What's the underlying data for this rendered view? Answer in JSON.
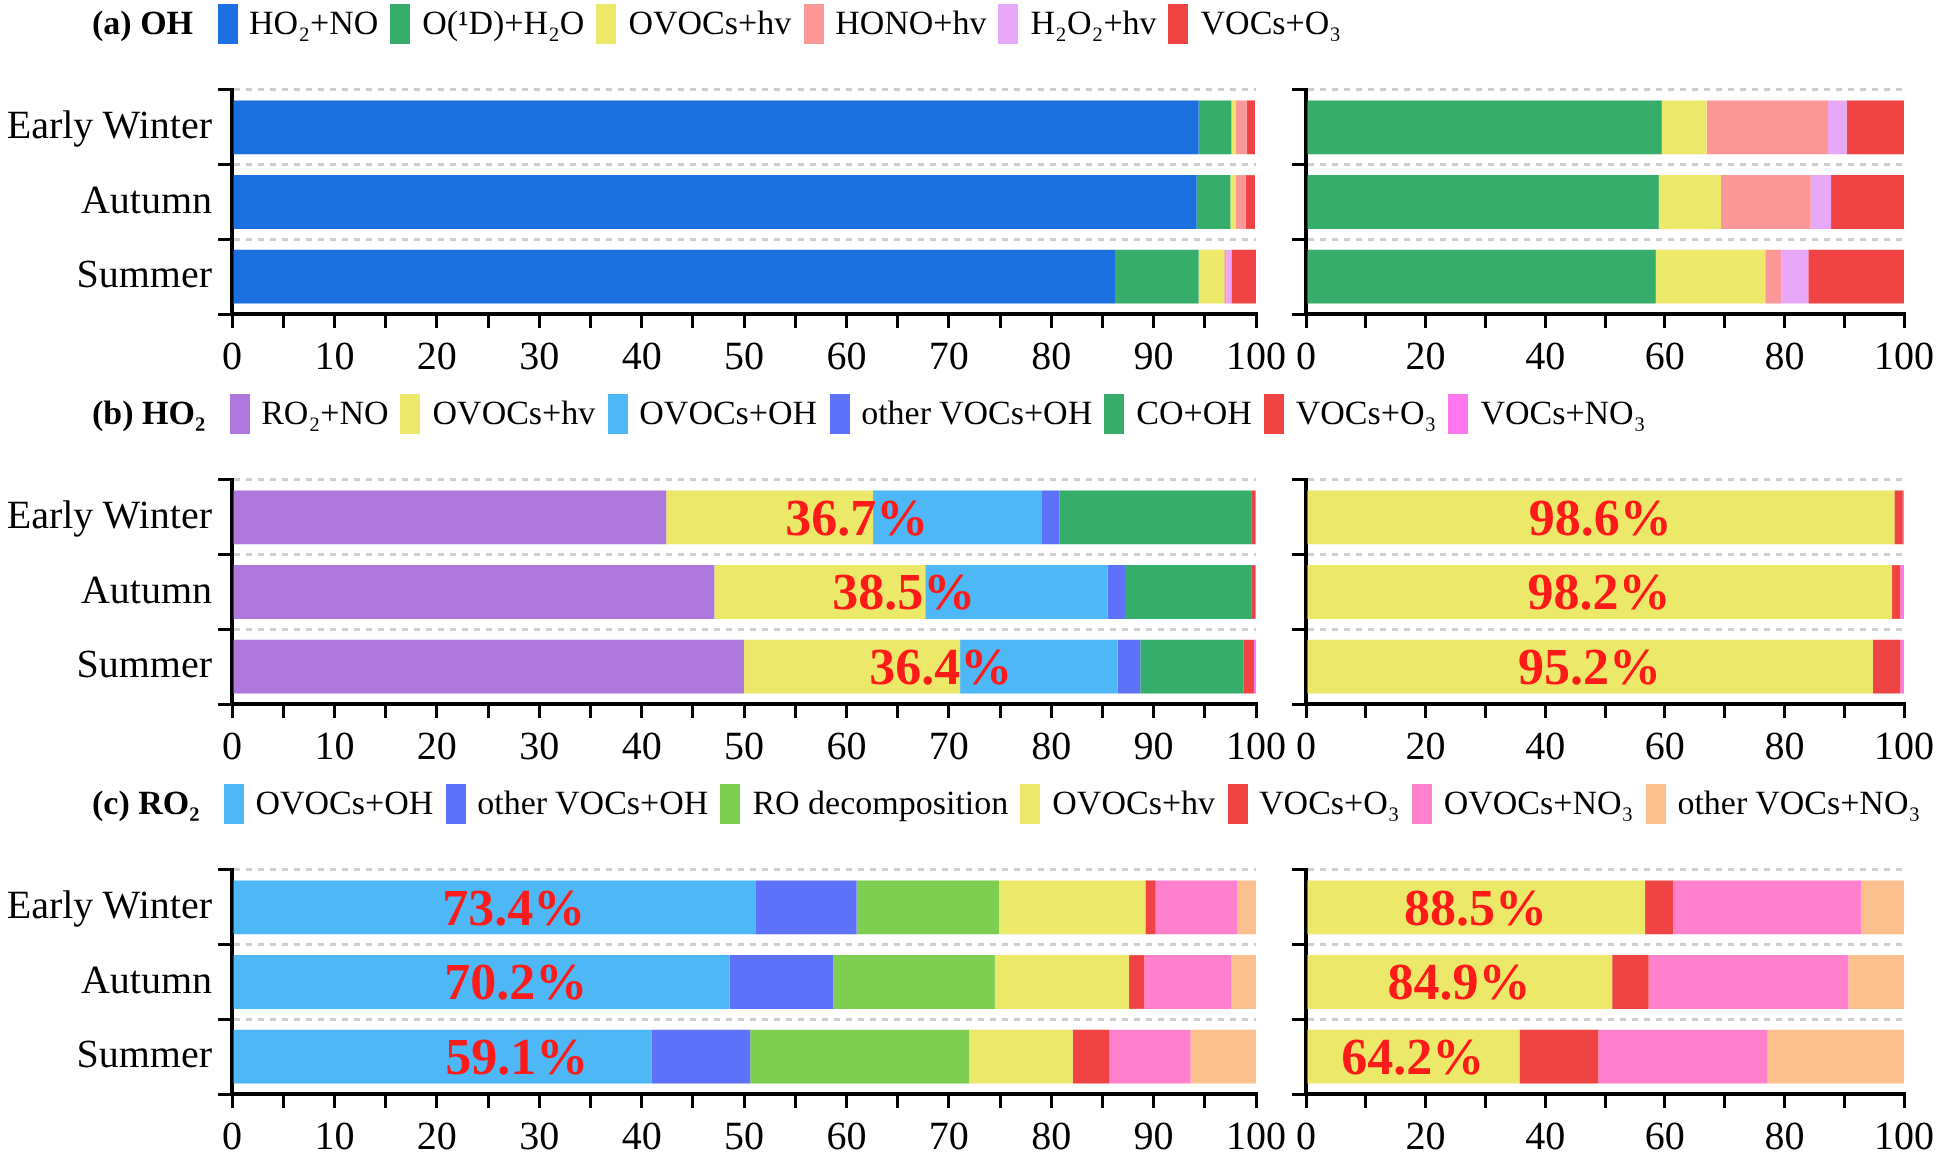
{
  "chart_data": [
    {
      "type": "bar",
      "orientation": "horizontal",
      "stacked": true,
      "title": "(a) OH",
      "legend": "top",
      "grid": "y",
      "categories": [
        "Early Winter",
        "Autumn",
        "Summer"
      ],
      "xlim": [
        0,
        100
      ],
      "xticks": [
        0,
        {
          "value": 5,
          "label": null
        },
        10,
        {
          "value": 15,
          "label": null
        },
        20,
        {
          "value": 25,
          "label": null
        },
        30,
        {
          "value": 35,
          "label": null
        },
        40,
        {
          "value": 45,
          "label": null
        },
        50,
        {
          "value": 55,
          "label": null
        },
        60,
        {
          "value": 65,
          "label": null
        },
        70,
        {
          "value": 75,
          "label": null
        },
        80,
        {
          "value": 85,
          "label": null
        },
        90,
        {
          "value": 95,
          "label": null
        },
        100
      ],
      "series": [
        {
          "name": "HO₂+NO",
          "color": "#1b6fdf",
          "values": [
            94.4,
            94.2,
            86.3
          ]
        },
        {
          "name": "O(¹D)+H₂O",
          "color": "#36ad6a",
          "values": [
            3.2,
            3.3,
            8.1
          ]
        },
        {
          "name": "OVOCs+hv",
          "color": "#ece86a",
          "values": [
            0.4,
            0.5,
            2.5
          ]
        },
        {
          "name": "HONO+hv",
          "color": "#fb9797",
          "values": [
            1.1,
            1.0,
            0.2
          ]
        },
        {
          "name": "H₂O₂+hv",
          "color": "#e9a8f7",
          "values": [
            null,
            null,
            0.5
          ]
        },
        {
          "name": "VOCs+O₃",
          "color": "#f04444",
          "values": [
            0.8,
            0.9,
            2.4
          ]
        }
      ]
    },
    {
      "type": "bar",
      "orientation": "horizontal",
      "stacked": true,
      "grid": "y",
      "categories": [
        null,
        null,
        null
      ],
      "xlim": [
        0,
        100
      ],
      "xticks": [
        0,
        {
          "value": 10,
          "label": null
        },
        20,
        {
          "value": 30,
          "label": null
        },
        40,
        {
          "value": 50,
          "label": null
        },
        60,
        {
          "value": 70,
          "label": null
        },
        80,
        {
          "value": 90,
          "label": null
        },
        100
      ],
      "series": [
        {
          "color": "#36ad6a",
          "values": [
            59.5,
            59.0,
            58.5
          ]
        },
        {
          "color": "#ece86a",
          "values": [
            7.5,
            10.4,
            18.3
          ]
        },
        {
          "color": "#fb9797",
          "values": [
            20.3,
            15.0,
            2.7
          ]
        },
        {
          "color": "#e9a8f7",
          "values": [
            3.1,
            3.4,
            4.5
          ]
        },
        {
          "color": "#f04444",
          "values": [
            9.6,
            12.2,
            16.0
          ]
        }
      ]
    },
    {
      "type": "bar",
      "orientation": "horizontal",
      "stacked": true,
      "title": "(b) HO₂",
      "legend": "top",
      "grid": "y",
      "categories": [
        "Early Winter",
        "Autumn",
        "Summer"
      ],
      "xlim": [
        0,
        100
      ],
      "xticks": [
        0,
        {
          "value": 5,
          "label": null
        },
        10,
        {
          "value": 15,
          "label": null
        },
        20,
        {
          "value": 25,
          "label": null
        },
        30,
        {
          "value": 35,
          "label": null
        },
        40,
        {
          "value": 45,
          "label": null
        },
        50,
        {
          "value": 55,
          "label": null
        },
        60,
        {
          "value": 65,
          "label": null
        },
        70,
        {
          "value": 75,
          "label": null
        },
        80,
        {
          "value": 85,
          "label": null
        },
        90,
        {
          "value": 95,
          "label": null
        },
        100
      ],
      "series": [
        {
          "name": "RO₂+NO",
          "color": "#ae78de",
          "values": [
            42.4,
            47.1,
            50.0
          ]
        },
        {
          "name": "OVOCs+hv",
          "color": "#ece86a",
          "values": [
            20.2,
            20.6,
            21.1
          ]
        },
        {
          "name": "OVOCs+OH",
          "color": "#4db8f5",
          "values": [
            16.5,
            17.8,
            15.4
          ]
        },
        {
          "name": "other VOCs+OH",
          "color": "#5d72f8",
          "values": [
            1.7,
            1.8,
            2.2
          ]
        },
        {
          "name": "CO+OH",
          "color": "#36ad6a",
          "values": [
            18.8,
            12.3,
            10.1
          ]
        },
        {
          "name": "VOCs+O₃",
          "color": "#f04444",
          "values": [
            0.3,
            0.3,
            1.0
          ]
        },
        {
          "name": "VOCs+NO₃",
          "color": "#ff77ee",
          "values": [
            0.1,
            0.1,
            0.2
          ]
        }
      ],
      "annotations": [
        {
          "text": "36.7%",
          "x": 61,
          "y": "Early Winter"
        },
        {
          "text": "38.5%",
          "x": 65.6,
          "y": "Autumn"
        },
        {
          "text": "36.4%",
          "x": 69.2,
          "y": "Summer"
        }
      ]
    },
    {
      "type": "bar",
      "orientation": "horizontal",
      "stacked": true,
      "grid": "y",
      "categories": [
        null,
        null,
        null
      ],
      "xlim": [
        0,
        100
      ],
      "xticks": [
        0,
        {
          "value": 10,
          "label": null
        },
        20,
        {
          "value": 30,
          "label": null
        },
        40,
        {
          "value": 50,
          "label": null
        },
        60,
        {
          "value": 70,
          "label": null
        },
        80,
        {
          "value": 90,
          "label": null
        },
        100
      ],
      "series": [
        {
          "color": "#ece86a",
          "values": [
            98.4,
            98.0,
            94.8
          ]
        },
        {
          "color": "#f04444",
          "values": [
            1.4,
            1.4,
            4.6
          ]
        },
        {
          "color": "#ff77ee",
          "values": [
            0.2,
            0.6,
            0.6
          ]
        }
      ],
      "annotations": [
        "98.6%",
        "98.2%",
        "95.2%"
      ]
    },
    {
      "type": "bar",
      "orientation": "horizontal",
      "stacked": true,
      "title": "(c) RO₂",
      "legend": "top",
      "grid": "y",
      "categories": [
        "Early Winter",
        "Autumn",
        "Summer"
      ],
      "xlim": [
        0,
        100
      ],
      "xticks": [
        0,
        {
          "value": 5,
          "label": null
        },
        10,
        {
          "value": 15,
          "label": null
        },
        20,
        {
          "value": 25,
          "label": null
        },
        30,
        {
          "value": 35,
          "label": null
        },
        40,
        {
          "value": 45,
          "label": null
        },
        50,
        {
          "value": 55,
          "label": null
        },
        60,
        {
          "value": 65,
          "label": null
        },
        70,
        {
          "value": 75,
          "label": null
        },
        80,
        {
          "value": 85,
          "label": null
        },
        90,
        {
          "value": 95,
          "label": null
        },
        100
      ],
      "series": [
        {
          "name": "OVOCs+OH",
          "color": "#4db8f5",
          "values": [
            51.1,
            48.6,
            41.0
          ]
        },
        {
          "name": "other VOCs+OH",
          "color": "#5d72f8",
          "values": [
            9.9,
            10.1,
            9.6
          ]
        },
        {
          "name": "RO decomposition",
          "color": "#7ecf51",
          "values": [
            13.9,
            15.8,
            21.4
          ]
        },
        {
          "name": "OVOCs+hv",
          "color": "#ece86a",
          "values": [
            14.3,
            13.1,
            10.1
          ]
        },
        {
          "name": "VOCs+O₃",
          "color": "#f04444",
          "values": [
            1.0,
            1.5,
            3.6
          ]
        },
        {
          "name": "OVOCs+NO₃",
          "color": "#ff80cc",
          "values": [
            8.0,
            8.5,
            7.9
          ]
        },
        {
          "name": "other VOCs+NO₃",
          "color": "#fcc08e",
          "values": [
            1.8,
            2.4,
            6.4
          ]
        }
      ],
      "annotations": [
        {
          "text": "73.4%",
          "x": 27.5,
          "y": "Early Winter"
        },
        {
          "text": "70.2%",
          "x": 27.7,
          "y": "Autumn"
        },
        {
          "text": "59.1%",
          "x": 27.8,
          "y": "Summer"
        }
      ]
    },
    {
      "type": "bar",
      "orientation": "horizontal",
      "stacked": true,
      "grid": "y",
      "categories": [
        null,
        null,
        null
      ],
      "xlim": [
        0,
        100
      ],
      "xticks": [
        0,
        {
          "value": 10,
          "label": null
        },
        20,
        {
          "value": 30,
          "label": null
        },
        40,
        {
          "value": 50,
          "label": null
        },
        60,
        {
          "value": 70,
          "label": null
        },
        80,
        {
          "value": 90,
          "label": null
        },
        100
      ],
      "series": [
        {
          "color": "#ece86a",
          "values": [
            56.7,
            51.2,
            35.7
          ]
        },
        {
          "color": "#f04444",
          "values": [
            4.7,
            6.1,
            13.2
          ]
        },
        {
          "color": "#ff80cc",
          "values": [
            31.5,
            33.4,
            28.3
          ]
        },
        {
          "color": "#fcc08e",
          "values": [
            7.1,
            9.3,
            22.8
          ]
        }
      ],
      "annotations": [
        "88.5%",
        "84.9%",
        "64.2%"
      ]
    }
  ]
}
